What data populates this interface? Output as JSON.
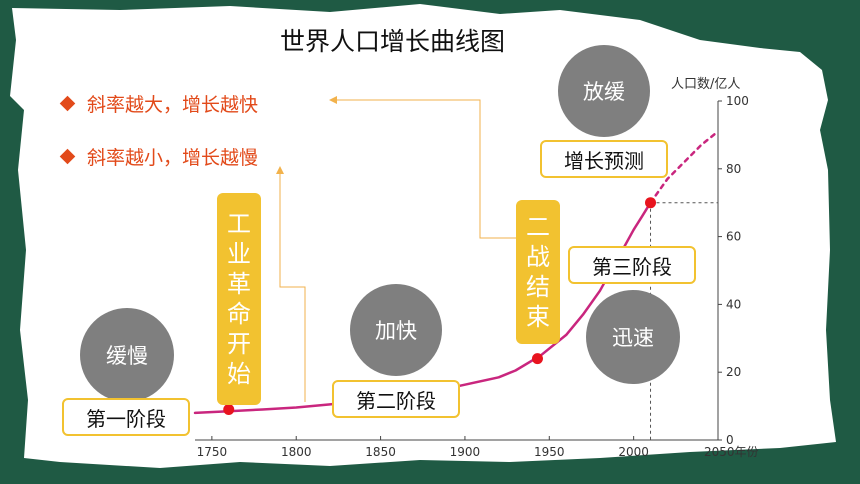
{
  "title": "世界人口增长曲线图",
  "bullets": [
    "斜率越大，增长越快",
    "斜率越小，增长越慢"
  ],
  "circles": {
    "slow": "缓慢",
    "faster": "加快",
    "rapid": "迅速",
    "slowing": "放缓"
  },
  "stages": {
    "first": "第一阶段",
    "second": "第二阶段",
    "third": "第三阶段",
    "forecast": "增长预测"
  },
  "events": {
    "industrial": "工业革命开始",
    "ww2": "二战结束"
  },
  "colors": {
    "curve": "#c9267e",
    "marker": "#e8141e",
    "accent": "#e24a1a",
    "box_border": "#f2c230",
    "bg": "#1f5a44"
  },
  "chart_data": {
    "type": "line",
    "ylabel": "人口数/亿人",
    "xlabel": "年份",
    "xlim": [
      1740,
      2050
    ],
    "ylim": [
      0,
      100
    ],
    "x_ticks": [
      "1750",
      "1800",
      "1850",
      "1900",
      "1950",
      "2000",
      "2050年份"
    ],
    "y_ticks": [
      "0",
      "20",
      "40",
      "60",
      "80",
      "100"
    ],
    "series": [
      {
        "style": "solid",
        "x": [
          1740,
          1760,
          1780,
          1800,
          1820,
          1840,
          1860,
          1880,
          1900,
          1920,
          1930,
          1945,
          1960,
          1970,
          1980,
          1990,
          2000,
          2005,
          2010
        ],
        "y": [
          8,
          8.5,
          9,
          9.6,
          10.5,
          11.6,
          12.8,
          14.2,
          16.3,
          18.5,
          20.5,
          25,
          31,
          37,
          44,
          53,
          62,
          66,
          70
        ]
      },
      {
        "style": "dashed",
        "x": [
          2010,
          2020,
          2030,
          2040,
          2050
        ],
        "y": [
          70,
          77,
          82,
          87,
          91
        ]
      }
    ],
    "markers": [
      {
        "x": 1760,
        "y": 9
      },
      {
        "x": 1943,
        "y": 24
      },
      {
        "x": 2010,
        "y": 70
      }
    ]
  }
}
